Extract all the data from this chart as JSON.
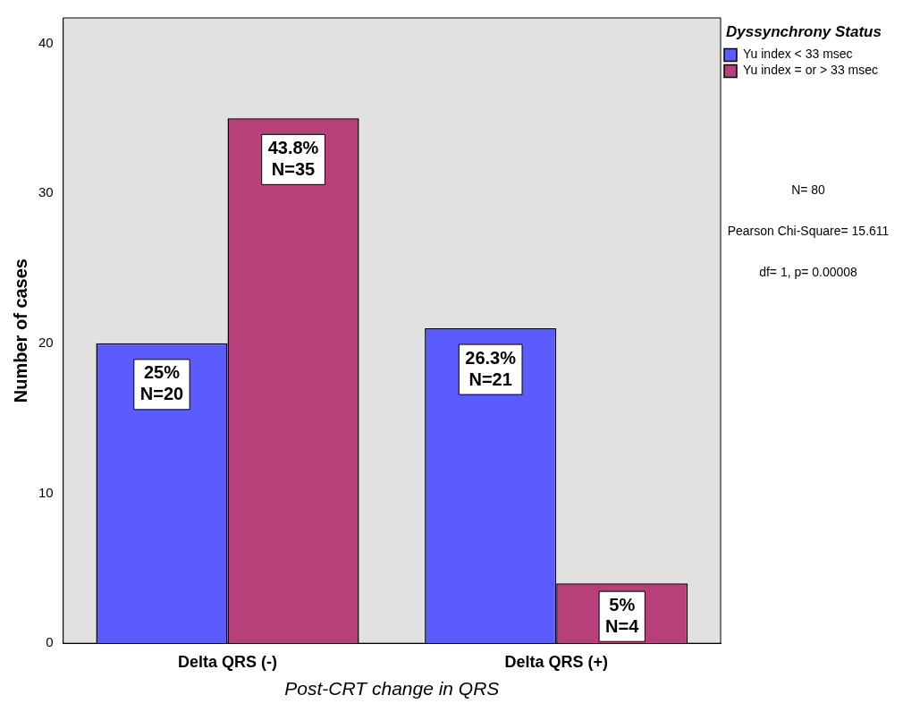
{
  "chart_data": {
    "type": "bar",
    "xlabel": "Post-CRT change in QRS",
    "ylabel": "Number of cases",
    "legend_title": "Dyssynchrony Status",
    "categories": [
      "Delta QRS (-)",
      "Delta QRS (+)"
    ],
    "series": [
      {
        "name": "Yu index < 33 msec",
        "color": "#5b5bff",
        "values": [
          20,
          21
        ],
        "value_labels": [
          "25%\nN=20",
          "26.3%\nN=21"
        ]
      },
      {
        "name": "Yu index = or > 33 msec",
        "color": "#b8407a",
        "values": [
          35,
          4
        ],
        "value_labels": [
          "43.8%\nN=35",
          "5%\nN=4"
        ]
      }
    ],
    "ylim": [
      0,
      41.7
    ],
    "yticks": [
      0,
      10,
      20,
      30,
      40
    ],
    "grid": false,
    "legend": "top right",
    "annotations": [
      "N= 80",
      "Pearson Chi-Square= 15.611",
      "df= 1, p= 0.00008"
    ]
  }
}
